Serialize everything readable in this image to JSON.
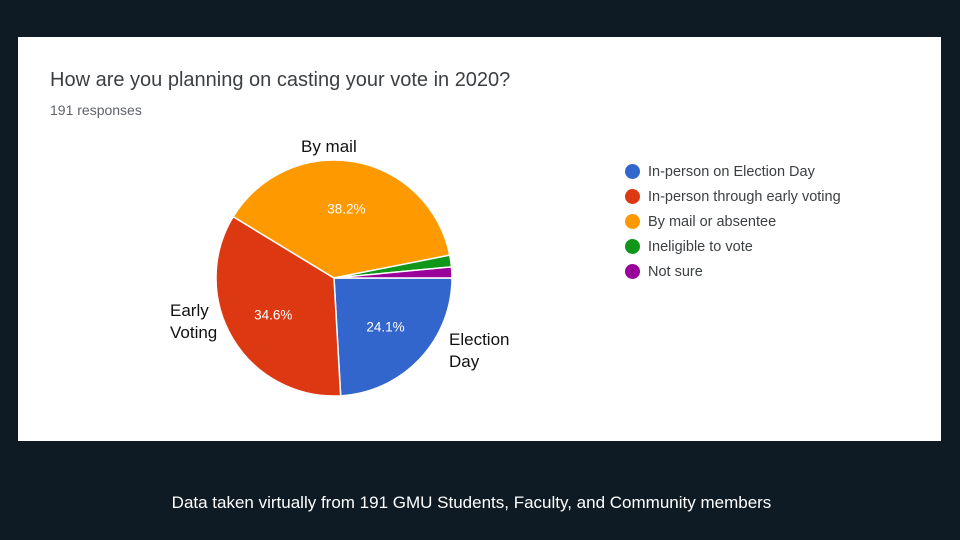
{
  "chart_data": {
    "type": "pie",
    "title": "How are you planning on casting your vote in 2020?",
    "subtitle": "191 responses",
    "categories": [
      "In-person on Election Day",
      "In-person through early voting",
      "By mail or absentee",
      "Ineligible to vote",
      "Not sure"
    ],
    "values": [
      24.1,
      34.6,
      38.2,
      1.6,
      1.5
    ],
    "colors": [
      "#3366cc",
      "#dc3912",
      "#ff9900",
      "#109618",
      "#990099"
    ],
    "slice_labels": [
      "24.1%",
      "34.6%",
      "38.2%",
      "",
      ""
    ],
    "legend_position": "right"
  },
  "annotations": {
    "by_mail": "By mail",
    "early_voting": "Early\nVoting",
    "election_day": "Election\nDay"
  },
  "footer": "Data taken virtually from 191 GMU Students, Faculty, and Community members"
}
